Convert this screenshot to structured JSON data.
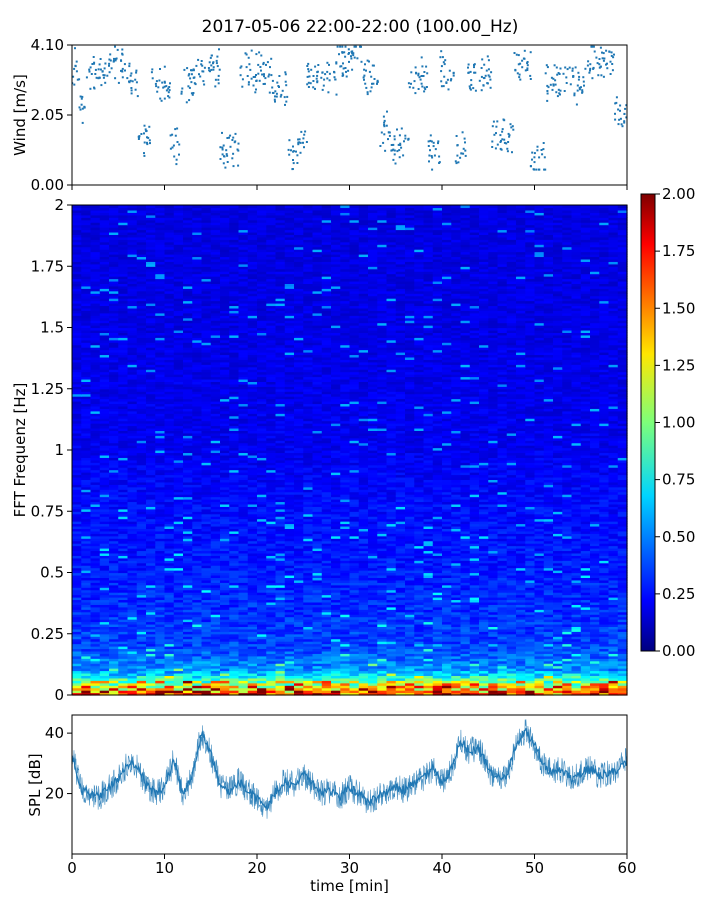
{
  "title": "2017-05-06 22:00-22:00 (100.00_Hz)",
  "chart_data": [
    {
      "type": "scatter",
      "ylabel": "Wind [m/s]",
      "xlim": [
        0,
        60
      ],
      "ylim": [
        0,
        4.1
      ],
      "yticks": [
        "0.00",
        "2.05",
        "4.10"
      ],
      "marker_color": "#1f77b4",
      "segments": [
        {
          "x0": 0.0,
          "x1": 0.8,
          "mean": 3.4
        },
        {
          "x0": 0.8,
          "x1": 1.6,
          "mean": 2.1
        },
        {
          "x0": 1.6,
          "x1": 3.8,
          "mean": 3.2
        },
        {
          "x0": 3.8,
          "x1": 6.0,
          "mean": 3.6
        },
        {
          "x0": 6.0,
          "x1": 7.2,
          "mean": 3.1
        },
        {
          "x0": 7.2,
          "x1": 8.6,
          "mean": 1.3
        },
        {
          "x0": 8.6,
          "x1": 10.6,
          "mean": 3.0
        },
        {
          "x0": 10.6,
          "x1": 11.6,
          "mean": 1.2
        },
        {
          "x0": 11.6,
          "x1": 13.4,
          "mean": 3.0
        },
        {
          "x0": 13.4,
          "x1": 16.0,
          "mean": 3.4
        },
        {
          "x0": 16.0,
          "x1": 18.2,
          "mean": 1.0
        },
        {
          "x0": 18.2,
          "x1": 21.6,
          "mean": 3.3
        },
        {
          "x0": 21.6,
          "x1": 23.4,
          "mean": 2.9
        },
        {
          "x0": 23.4,
          "x1": 24.4,
          "mean": 0.9
        },
        {
          "x0": 24.4,
          "x1": 25.4,
          "mean": 1.3
        },
        {
          "x0": 25.4,
          "x1": 28.6,
          "mean": 3.2
        },
        {
          "x0": 28.6,
          "x1": 31.4,
          "mean": 3.7
        },
        {
          "x0": 31.4,
          "x1": 33.2,
          "mean": 3.2
        },
        {
          "x0": 33.2,
          "x1": 34.4,
          "mean": 1.6
        },
        {
          "x0": 34.4,
          "x1": 36.4,
          "mean": 1.1
        },
        {
          "x0": 36.4,
          "x1": 38.4,
          "mean": 3.1
        },
        {
          "x0": 38.4,
          "x1": 39.8,
          "mean": 0.9
        },
        {
          "x0": 39.8,
          "x1": 41.4,
          "mean": 3.3
        },
        {
          "x0": 41.4,
          "x1": 42.6,
          "mean": 1.2
        },
        {
          "x0": 42.6,
          "x1": 45.4,
          "mean": 3.2
        },
        {
          "x0": 45.4,
          "x1": 47.8,
          "mean": 1.4
        },
        {
          "x0": 47.8,
          "x1": 49.6,
          "mean": 3.5
        },
        {
          "x0": 49.6,
          "x1": 51.2,
          "mean": 0.8
        },
        {
          "x0": 51.2,
          "x1": 53.4,
          "mean": 3.0
        },
        {
          "x0": 53.4,
          "x1": 55.4,
          "mean": 3.0
        },
        {
          "x0": 55.4,
          "x1": 58.6,
          "mean": 3.6
        },
        {
          "x0": 58.6,
          "x1": 60.0,
          "mean": 2.2
        }
      ]
    },
    {
      "type": "heatmap",
      "ylabel": "FFT Frequenz [Hz]",
      "xlim": [
        0,
        60
      ],
      "ylim": [
        0,
        2
      ],
      "yticks": [
        "0",
        "0.25",
        "0.5",
        "0.75",
        "1",
        "1.25",
        "1.5",
        "1.75",
        "2"
      ],
      "colormap": "jet",
      "colorbar": {
        "range": [
          0,
          2
        ],
        "ticks": [
          "0.00",
          "0.25",
          "0.50",
          "0.75",
          "1.00",
          "1.25",
          "1.50",
          "1.75",
          "2.00"
        ]
      },
      "intensity_profile": [
        {
          "freq_hz": 0.0,
          "value": 1.55
        },
        {
          "freq_hz": 0.05,
          "value": 1.0
        },
        {
          "freq_hz": 0.1,
          "value": 0.55
        },
        {
          "freq_hz": 0.2,
          "value": 0.38
        },
        {
          "freq_hz": 0.5,
          "value": 0.3
        },
        {
          "freq_hz": 0.75,
          "value": 0.27
        },
        {
          "freq_hz": 1.0,
          "value": 0.22
        },
        {
          "freq_hz": 1.5,
          "value": 0.2
        },
        {
          "freq_hz": 2.0,
          "value": 0.19
        }
      ]
    },
    {
      "type": "line",
      "xlabel": "time [min]",
      "ylabel": "SPL [dB]",
      "xlim": [
        0,
        60
      ],
      "ylim": [
        0,
        46
      ],
      "xticks": [
        "0",
        "10",
        "20",
        "30",
        "40",
        "50",
        "60"
      ],
      "yticks": [
        "20",
        "40"
      ],
      "line_color": "#1f77b4",
      "x": [
        0,
        1,
        2,
        3,
        4,
        5,
        6,
        7,
        8,
        9,
        10,
        11,
        12,
        13,
        14,
        15,
        16,
        17,
        18,
        19,
        20,
        21,
        22,
        23,
        24,
        25,
        26,
        27,
        28,
        29,
        30,
        31,
        32,
        33,
        34,
        35,
        36,
        37,
        38,
        39,
        40,
        41,
        42,
        43,
        44,
        45,
        46,
        47,
        48,
        49,
        50,
        51,
        52,
        53,
        54,
        55,
        56,
        57,
        58,
        59,
        60
      ],
      "y": [
        33,
        21,
        20,
        19,
        22,
        25,
        30,
        29,
        23,
        20,
        22,
        31,
        20,
        26,
        40,
        33,
        23,
        21,
        24,
        21,
        18,
        15,
        21,
        24,
        23,
        26,
        23,
        20,
        21,
        19,
        22,
        20,
        17,
        19,
        20,
        22,
        21,
        24,
        25,
        28,
        24,
        28,
        37,
        34,
        35,
        28,
        25,
        26,
        36,
        41,
        36,
        29,
        27,
        28,
        25,
        27,
        28,
        26,
        27,
        28,
        31
      ]
    }
  ]
}
